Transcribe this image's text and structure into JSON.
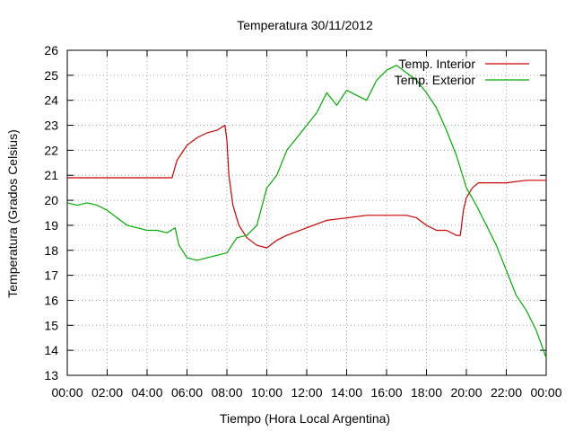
{
  "chart_data": {
    "type": "line",
    "title": "Temperatura 30/11/2012",
    "xlabel": "Tiempo (Hora Local Argentina)",
    "ylabel": "Temperatura (Grados Celsius)",
    "x_ticks": [
      "00:00",
      "02:00",
      "04:00",
      "06:00",
      "08:00",
      "10:00",
      "12:00",
      "14:00",
      "16:00",
      "18:00",
      "20:00",
      "22:00",
      "00:00"
    ],
    "y_ticks": [
      "13",
      "14",
      "15",
      "16",
      "17",
      "18",
      "19",
      "20",
      "21",
      "22",
      "23",
      "24",
      "25",
      "26"
    ],
    "xlim": [
      0,
      24
    ],
    "ylim": [
      13,
      26
    ],
    "grid": true,
    "legend_position": "top-right",
    "series": [
      {
        "name": "Temp. Interior",
        "color": "#cc0000",
        "x": [
          0,
          2,
          4,
          5.25,
          5.5,
          6,
          6.5,
          7,
          7.5,
          7.9,
          8.0,
          8.1,
          8.3,
          8.6,
          9,
          9.5,
          10,
          10.5,
          11,
          12,
          13,
          14,
          15,
          16,
          17,
          17.5,
          18,
          18.5,
          19,
          19.5,
          19.7,
          19.85,
          20,
          20.3,
          20.6,
          21,
          22,
          23,
          24
        ],
        "values": [
          20.9,
          20.9,
          20.9,
          20.9,
          21.6,
          22.2,
          22.5,
          22.7,
          22.8,
          23.0,
          22.4,
          21.0,
          19.8,
          19.0,
          18.5,
          18.2,
          18.1,
          18.4,
          18.6,
          18.9,
          19.2,
          19.3,
          19.4,
          19.4,
          19.4,
          19.3,
          19.0,
          18.8,
          18.8,
          18.6,
          18.6,
          19.6,
          20.1,
          20.5,
          20.7,
          20.7,
          20.7,
          20.8,
          20.8
        ]
      },
      {
        "name": "Temp. Exterior",
        "color": "#00aa00",
        "x": [
          0,
          0.5,
          1,
          1.5,
          2,
          2.5,
          3,
          3.5,
          4,
          4.5,
          5,
          5.4,
          5.6,
          6,
          6.5,
          7,
          7.5,
          8,
          8.5,
          9,
          9.5,
          10,
          10.5,
          11,
          11.5,
          12,
          12.5,
          13,
          13.5,
          14,
          14.5,
          15,
          15.5,
          16,
          16.5,
          17,
          17.5,
          18,
          18.5,
          19,
          19.5,
          20,
          20.5,
          21,
          21.5,
          22,
          22.5,
          23,
          23.5,
          24
        ],
        "values": [
          19.9,
          19.8,
          19.9,
          19.8,
          19.6,
          19.3,
          19.0,
          18.9,
          18.8,
          18.8,
          18.7,
          18.9,
          18.2,
          17.7,
          17.6,
          17.7,
          17.8,
          17.9,
          18.5,
          18.6,
          19.0,
          20.5,
          21.0,
          22.0,
          22.5,
          23.0,
          23.5,
          24.3,
          23.8,
          24.4,
          24.2,
          24.0,
          24.8,
          25.2,
          25.4,
          25.1,
          24.8,
          24.3,
          23.7,
          22.8,
          21.8,
          20.5,
          19.8,
          19.0,
          18.2,
          17.2,
          16.2,
          15.6,
          14.8,
          13.7
        ]
      }
    ]
  }
}
